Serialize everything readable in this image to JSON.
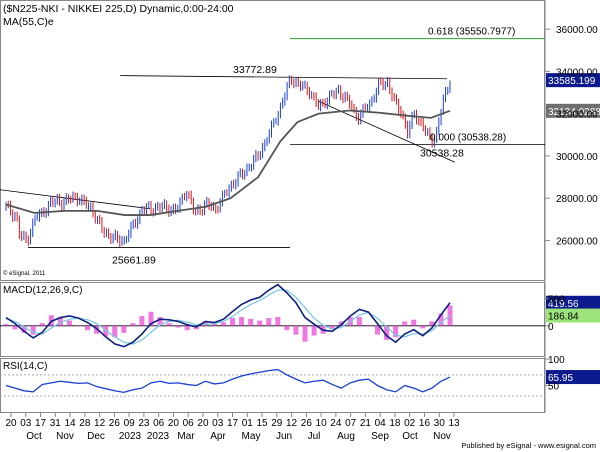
{
  "header": {
    "title": "($N225-NKI - NIKKEI 225,D) Dynamic,0:00-24:00",
    "ma_label": "MA(55,C)e"
  },
  "watermark": "© eSignal, 2011",
  "footer": "Published by eSignal - www.esignal.com",
  "colors": {
    "price_bar": "#1a3fcf",
    "ma_line": "#555555",
    "trendline": "#000000",
    "fib_line": "#2e9e2e",
    "macd_line": "#102080",
    "macd_signal": "#7ec8e3",
    "macd_hist": "#e84ad8",
    "rsi_line": "#1a3fcf",
    "current_bg": "#0b1a8c",
    "ma_value_bg": "#6e6e6e",
    "macd_value_bg": "#9be37a"
  },
  "chart_data": [
    {
      "type": "line",
      "panel": "price",
      "title": "($N225-NKI - NIKKEI 225,D) Dynamic,0:00-24:00",
      "ylim": [
        24600,
        37000
      ],
      "y_ticks": [
        26000,
        28000,
        30000,
        32000,
        34000,
        36000
      ],
      "y_tick_labels": [
        "26000.00",
        "28000.00",
        "30000.00",
        "32000.00",
        "34000.00",
        "36000.00"
      ],
      "x_ticks": [
        "20",
        "03",
        "17",
        "31",
        "14",
        "28",
        "12",
        "26",
        "09",
        "23",
        "06",
        "20",
        "06",
        "20",
        "03",
        "17",
        "01",
        "15",
        "29",
        "12",
        "26",
        "10",
        "24",
        "07",
        "21",
        "04",
        "18",
        "02",
        "16",
        "30",
        "13"
      ],
      "x_months": [
        "Oct",
        "Nov",
        "Dec",
        "2023",
        "2023",
        "Mar",
        "Apr",
        "May",
        "Jun",
        "Jul",
        "Aug",
        "Sep",
        "Oct",
        "Nov"
      ],
      "series": [
        {
          "name": "NIKKEI 225",
          "x": [
            "2022-09-20",
            "2022-09-30",
            "2022-10-03",
            "2022-10-10",
            "2022-10-17",
            "2022-10-24",
            "2022-10-31",
            "2022-11-07",
            "2022-11-14",
            "2022-11-24",
            "2022-12-01",
            "2022-12-09",
            "2022-12-15",
            "2022-12-22",
            "2022-12-30",
            "2023-01-10",
            "2023-01-19",
            "2023-01-27",
            "2023-02-03",
            "2023-02-15",
            "2023-02-28",
            "2023-03-09",
            "2023-03-17",
            "2023-03-28",
            "2023-04-06",
            "2023-04-20",
            "2023-05-02",
            "2023-05-16",
            "2023-05-26",
            "2023-06-06",
            "2023-06-16",
            "2023-06-22",
            "2023-07-03",
            "2023-07-12",
            "2023-07-20",
            "2023-07-31",
            "2023-08-10",
            "2023-08-18",
            "2023-08-31",
            "2023-09-06",
            "2023-09-15",
            "2023-09-22",
            "2023-09-29",
            "2023-10-04",
            "2023-10-10",
            "2023-10-17",
            "2023-10-26",
            "2023-10-31",
            "2023-11-06",
            "2023-11-13"
          ],
          "values": [
            27600,
            27100,
            26200,
            26000,
            27000,
            27300,
            27700,
            27900,
            27800,
            28100,
            27800,
            27600,
            26900,
            26400,
            26100,
            26000,
            26800,
            27500,
            27500,
            27600,
            27400,
            28400,
            27300,
            27700,
            27500,
            28600,
            29200,
            30000,
            31000,
            32300,
            33700,
            33400,
            33100,
            32300,
            32700,
            33100,
            32500,
            31800,
            32600,
            33300,
            33500,
            32500,
            32000,
            31100,
            32000,
            31500,
            30700,
            31000,
            32500,
            33585
          ]
        },
        {
          "name": "MA(55,C)e",
          "x": [
            "2022-09-20",
            "2022-10-17",
            "2022-11-14",
            "2022-12-15",
            "2023-01-10",
            "2023-02-03",
            "2023-03-01",
            "2023-03-28",
            "2023-04-20",
            "2023-05-16",
            "2023-06-06",
            "2023-06-22",
            "2023-07-12",
            "2023-08-10",
            "2023-09-06",
            "2023-10-04",
            "2023-10-26",
            "2023-11-13"
          ],
          "values": [
            27700,
            27300,
            27400,
            27400,
            27200,
            27200,
            27400,
            27600,
            28000,
            29000,
            30700,
            31600,
            32000,
            32150,
            32050,
            31900,
            31800,
            32134
          ]
        }
      ],
      "annotations": [
        {
          "label": "0.618 (35550.7977)",
          "y": 35550.7977
        },
        {
          "label": "33772.89",
          "y": 33772.89
        },
        {
          "label": "0.000 (30538.28)",
          "y": 30538.28
        },
        {
          "label": "30538.28",
          "y": 30538.28
        },
        {
          "label": "25661.89",
          "y": 25661.89
        }
      ],
      "last_value_labels": [
        "33585.199",
        "32134.0288"
      ]
    },
    {
      "type": "line",
      "panel": "macd",
      "title": "MACD(12,26,9,C)",
      "ylim": [
        -550,
        780
      ],
      "y_ticks": [
        0,
        500
      ],
      "y_tick_labels": [
        "0",
        "500"
      ],
      "series": [
        {
          "name": "MACD",
          "values": [
            150,
            40,
            -100,
            -220,
            -120,
            80,
            150,
            180,
            140,
            60,
            -50,
            -200,
            -330,
            -380,
            -300,
            -150,
            40,
            120,
            110,
            80,
            20,
            -20,
            80,
            60,
            120,
            260,
            390,
            470,
            520,
            650,
            750,
            600,
            420,
            150,
            30,
            -80,
            -100,
            20,
            180,
            300,
            250,
            40,
            -180,
            -300,
            -150,
            -70,
            -180,
            -40,
            200,
            419.56
          ]
        },
        {
          "name": "Signal",
          "values": [
            130,
            80,
            -20,
            -120,
            -150,
            -40,
            60,
            120,
            140,
            110,
            40,
            -80,
            -200,
            -300,
            -330,
            -260,
            -120,
            20,
            80,
            100,
            70,
            20,
            30,
            40,
            80,
            170,
            290,
            390,
            460,
            560,
            650,
            650,
            520,
            330,
            140,
            10,
            -60,
            -30,
            80,
            200,
            240,
            140,
            -20,
            -170,
            -200,
            -140,
            -150,
            -90,
            60,
            186.84
          ]
        }
      ],
      "last_value_labels": [
        "419.56",
        "186.84"
      ]
    },
    {
      "type": "line",
      "panel": "rsi",
      "title": "RSI(14,C)",
      "ylim": [
        0,
        100
      ],
      "y_ticks": [
        50,
        100
      ],
      "y_tick_labels": [
        "50",
        "100"
      ],
      "series": [
        {
          "name": "RSI",
          "values": [
            50,
            45,
            40,
            38,
            52,
            55,
            58,
            56,
            54,
            55,
            48,
            44,
            40,
            37,
            42,
            45,
            55,
            58,
            54,
            55,
            52,
            50,
            58,
            53,
            55,
            62,
            68,
            72,
            75,
            78,
            80,
            70,
            62,
            55,
            58,
            60,
            52,
            45,
            55,
            60,
            62,
            50,
            42,
            38,
            50,
            45,
            38,
            45,
            58,
            65.95
          ]
        }
      ],
      "last_value_labels": [
        "65.95"
      ]
    }
  ]
}
